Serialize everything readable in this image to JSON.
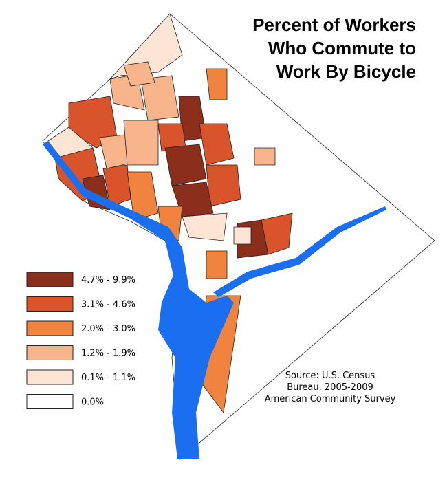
{
  "title_lines": [
    "Percent of Workers",
    "Who Commute to",
    "Work By Bicycle"
  ],
  "legend": [
    {
      "label": "4.7% - 9.9%",
      "color": "#8b2e1c"
    },
    {
      "label": "3.1% - 4.6%",
      "color": "#d9542b"
    },
    {
      "label": "2.0% - 3.0%",
      "color": "#f0843f"
    },
    {
      "label": "1.2% - 1.9%",
      "color": "#f8b48a"
    },
    {
      "label": "0.1% - 1.1%",
      "color": "#fde5d6"
    },
    {
      "label": "0.0%",
      "color": "#ffffff"
    }
  ],
  "source_lines": [
    "Source: U.S. Census",
    "Bureau, 2005-2009",
    "American Community Survey"
  ],
  "water_color": "#1a6ff0"
}
